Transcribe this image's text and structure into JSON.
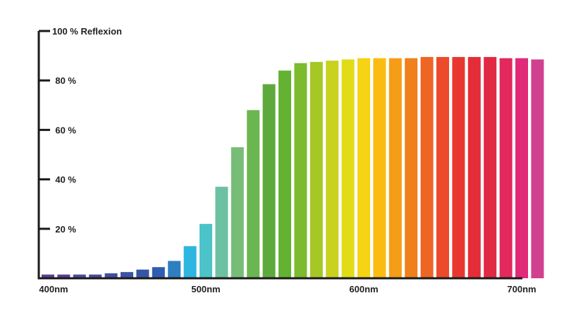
{
  "chart_data": {
    "type": "bar",
    "title": "",
    "xlabel": "",
    "ylabel": "",
    "ylim": [
      0,
      100
    ],
    "y_ticks": [
      {
        "value": 20,
        "label": "20 %"
      },
      {
        "value": 40,
        "label": "40 %"
      },
      {
        "value": 60,
        "label": "60 %"
      },
      {
        "value": 80,
        "label": "80 %"
      },
      {
        "value": 100,
        "label": "100 % Reflexion"
      }
    ],
    "x_ticks": [
      {
        "value": 400,
        "label": "400nm"
      },
      {
        "value": 500,
        "label": "500nm"
      },
      {
        "value": 600,
        "label": "600nm"
      },
      {
        "value": 700,
        "label": "700nm"
      }
    ],
    "grid": false,
    "legend": "none",
    "x": [
      400,
      410,
      420,
      430,
      440,
      450,
      460,
      470,
      480,
      490,
      500,
      510,
      520,
      530,
      540,
      550,
      560,
      570,
      580,
      590,
      600,
      610,
      620,
      630,
      640,
      650,
      660,
      670,
      680,
      690,
      700,
      710
    ],
    "values": [
      1.5,
      1.5,
      1.5,
      1.5,
      2,
      2.5,
      3.5,
      4.5,
      7,
      13,
      22,
      37,
      53,
      68,
      78.5,
      84,
      87,
      87.5,
      88,
      88.5,
      89,
      89,
      89,
      89,
      89.5,
      89.5,
      89.5,
      89.5,
      89.5,
      89,
      89,
      88.5
    ],
    "colors": [
      "#5a3f90",
      "#57428f",
      "#4f4a9a",
      "#4a4c9c",
      "#3f4e9f",
      "#3c52a3",
      "#3456a6",
      "#2f5db0",
      "#2d7fc2",
      "#2cb5df",
      "#4cc3c8",
      "#6cc1a2",
      "#78bd77",
      "#6cb651",
      "#5ea93c",
      "#63b232",
      "#7cba2e",
      "#a5c826",
      "#c8d21f",
      "#e1dc16",
      "#f6d315",
      "#fbbc12",
      "#f59d16",
      "#f07f1d",
      "#ee6524",
      "#ec4a2b",
      "#e8372f",
      "#e42d38",
      "#e12944",
      "#e2285c",
      "#e12a78",
      "#d13f8f"
    ]
  }
}
